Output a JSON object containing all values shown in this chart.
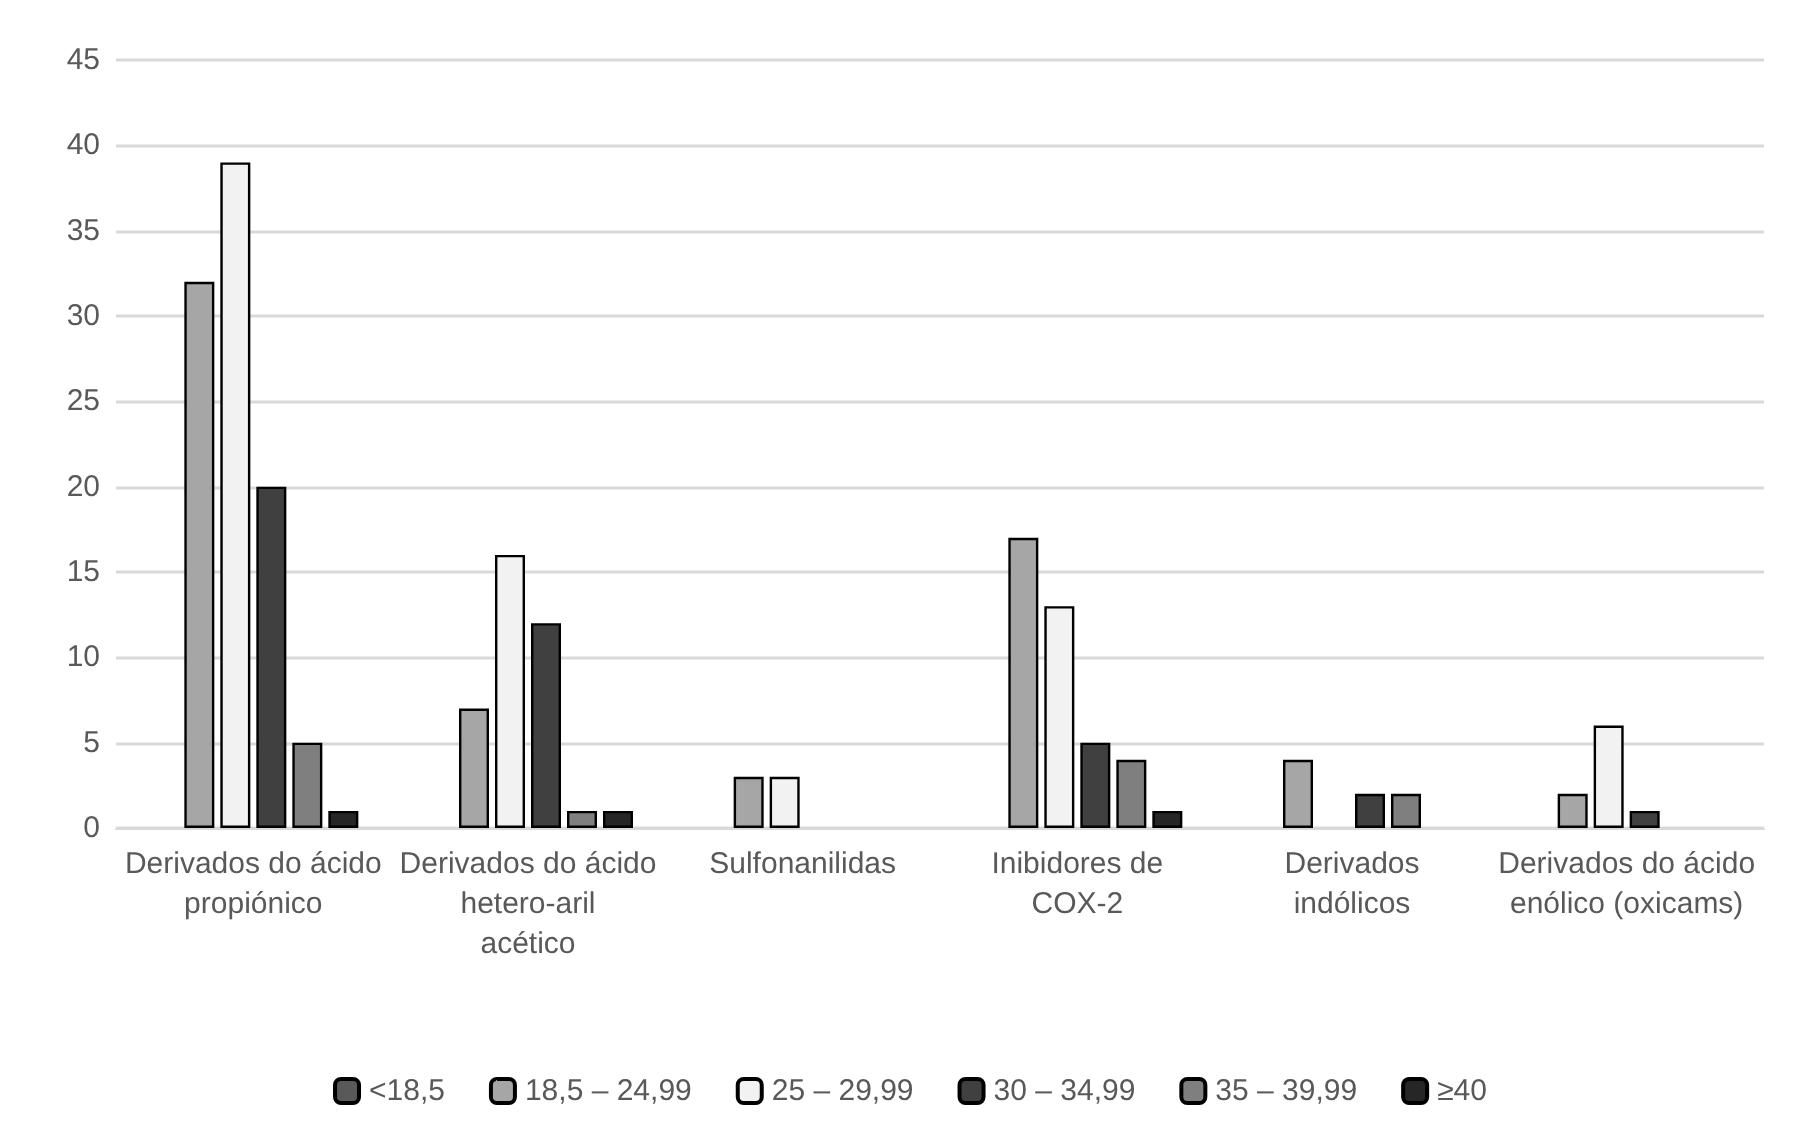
{
  "chart_data": {
    "type": "bar",
    "categories": [
      "Derivados do ácido propiónico",
      "Derivados do ácido hetero-aril acético",
      "Sulfonanilidas",
      "Inibidores de COX-2",
      "Derivados indólicos",
      "Derivados do ácido enólico (oxicams)"
    ],
    "series": [
      {
        "name": "<18,5",
        "color": "#595959",
        "values": [
          0,
          0,
          0,
          0,
          0,
          0
        ]
      },
      {
        "name": "18,5 – 24,99",
        "color": "#a6a6a6",
        "values": [
          32,
          7,
          3,
          17,
          4,
          2
        ]
      },
      {
        "name": "25 – 29,99",
        "color": "#f2f2f2",
        "values": [
          39,
          16,
          3,
          13,
          0,
          6
        ]
      },
      {
        "name": "30 – 34,99",
        "color": "#404040",
        "values": [
          20,
          12,
          0,
          5,
          2,
          1
        ]
      },
      {
        "name": "35 – 39,99",
        "color": "#7f7f7f",
        "values": [
          5,
          1,
          0,
          4,
          2,
          0
        ]
      },
      {
        "name": "≥40",
        "color": "#262626",
        "values": [
          1,
          1,
          0,
          1,
          0,
          0
        ]
      }
    ],
    "ylim": [
      0,
      45
    ],
    "yticks": [
      0,
      5,
      10,
      15,
      20,
      25,
      30,
      35,
      40,
      45
    ],
    "grid": "y",
    "legend": "bottom"
  }
}
